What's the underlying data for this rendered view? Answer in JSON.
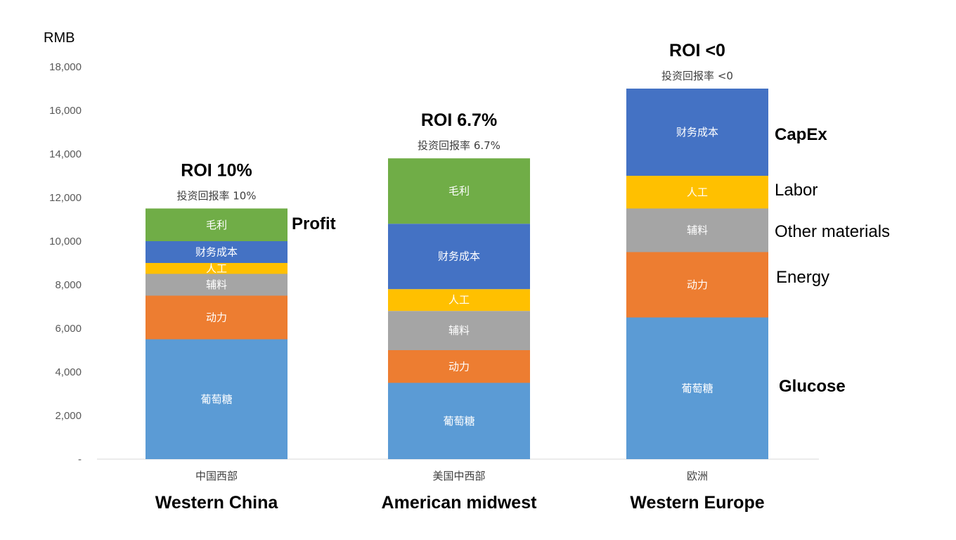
{
  "chart_data": {
    "type": "bar",
    "stacked": true,
    "unit_label": "RMB",
    "ylim": [
      0,
      18000
    ],
    "yticks": [
      {
        "value": 0,
        "label": "-"
      },
      {
        "value": 2000,
        "label": "2,000"
      },
      {
        "value": 4000,
        "label": "4,000"
      },
      {
        "value": 6000,
        "label": "6,000"
      },
      {
        "value": 8000,
        "label": "8,000"
      },
      {
        "value": 10000,
        "label": "10,000"
      },
      {
        "value": 12000,
        "label": "12,000"
      },
      {
        "value": 14000,
        "label": "14,000"
      },
      {
        "value": 16000,
        "label": "16,000"
      },
      {
        "value": 18000,
        "label": "18,000"
      }
    ],
    "categories": [
      "中国西部",
      "美国中西部",
      "欧洲"
    ],
    "categories_en": [
      "Western China",
      "American midwest",
      "Western Europe"
    ],
    "roi": [
      {
        "title": "ROI 10%",
        "subtitle": "投资回报率 10%"
      },
      {
        "title": "ROI 6.7%",
        "subtitle": "投资回报率 6.7%"
      },
      {
        "title": "ROI <0",
        "subtitle": "投资回报率 <0"
      }
    ],
    "series": [
      {
        "name": "葡萄糖",
        "color": "#5b9bd5",
        "values": [
          5500,
          3500,
          6500
        ]
      },
      {
        "name": "动力",
        "color": "#ed7d31",
        "values": [
          2000,
          1500,
          3000
        ]
      },
      {
        "name": "辅料",
        "color": "#a5a5a5",
        "values": [
          1000,
          1800,
          2000
        ]
      },
      {
        "name": "人工",
        "color": "#ffc000",
        "values": [
          500,
          1000,
          1500
        ]
      },
      {
        "name": "财务成本",
        "color": "#4472c4",
        "values": [
          1000,
          3000,
          4000
        ]
      },
      {
        "name": "毛利",
        "color": "#70ad47",
        "values": [
          1500,
          3000,
          0
        ]
      }
    ],
    "annotations": {
      "profit": "Profit",
      "capex": "CapEx",
      "labor": "Labor",
      "other_materials": "Other materials",
      "energy": "Energy",
      "glucose": "Glucose"
    },
    "grid": false,
    "legend": "none"
  }
}
